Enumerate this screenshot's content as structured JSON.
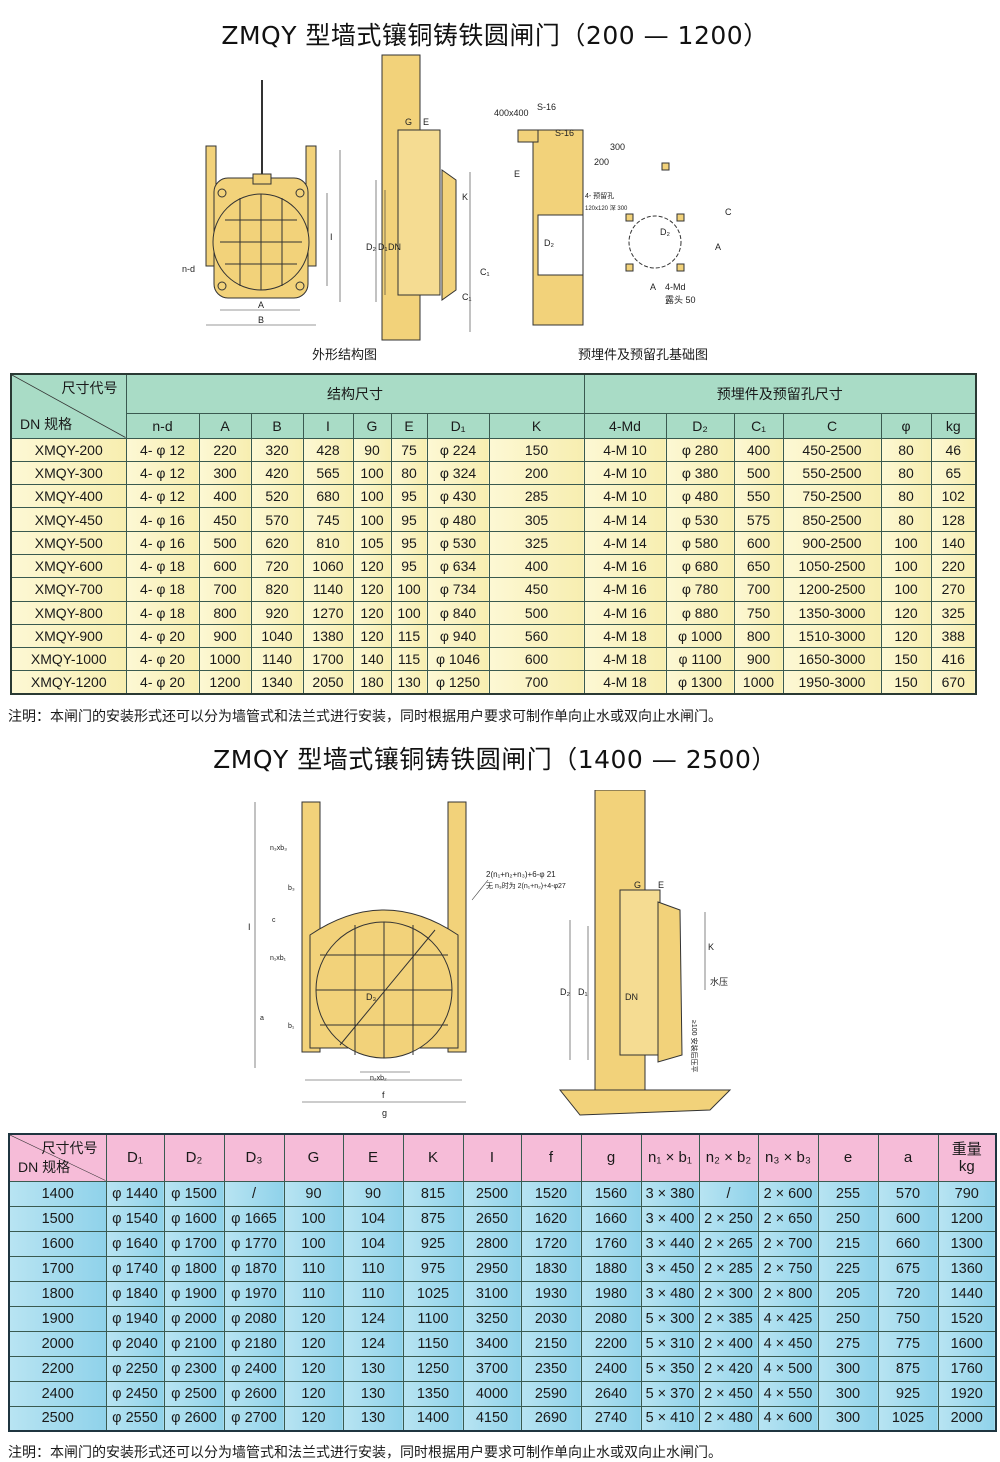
{
  "section1": {
    "title": "ZMQY 型墙式镶铜铸铁圆闸门（200 — 1200）",
    "diagram_captions": [
      "外形结构图",
      "预埋件及预留孔基础图"
    ],
    "diagram_labels": [
      "n-d",
      "A",
      "B",
      "I",
      "G",
      "E",
      "K",
      "D₂",
      "D₁",
      "DN",
      "C₁",
      "400x400",
      "S-16",
      "S-16",
      "E",
      "C₁",
      "D₂",
      "200",
      "300",
      "4- 预留孔",
      "120x120 深 300",
      "C",
      "A",
      "D₂",
      "A",
      "4-Md",
      "露头 50"
    ],
    "table": {
      "corner_top": "尺寸代号",
      "corner_bottom": "DN 规格",
      "group1": "结构尺寸",
      "group2": "预埋件及预留孔尺寸",
      "columns": [
        "n-d",
        "A",
        "B",
        "I",
        "G",
        "E",
        "D₁",
        "K",
        "4-Md",
        "D₂",
        "C₁",
        "C",
        "φ",
        "kg"
      ],
      "rows": [
        [
          "XMQY-200",
          "4- φ 12",
          "220",
          "320",
          "428",
          "90",
          "75",
          "φ 224",
          "150",
          "4-M 10",
          "φ 280",
          "400",
          "450-2500",
          "80",
          "46"
        ],
        [
          "XMQY-300",
          "4- φ 12",
          "300",
          "420",
          "565",
          "100",
          "80",
          "φ 324",
          "200",
          "4-M 10",
          "φ 380",
          "500",
          "550-2500",
          "80",
          "65"
        ],
        [
          "XMQY-400",
          "4- φ 12",
          "400",
          "520",
          "680",
          "100",
          "95",
          "φ 430",
          "285",
          "4-M 10",
          "φ 480",
          "550",
          "750-2500",
          "80",
          "102"
        ],
        [
          "XMQY-450",
          "4- φ 16",
          "450",
          "570",
          "745",
          "100",
          "95",
          "φ 480",
          "305",
          "4-M 14",
          "φ 530",
          "575",
          "850-2500",
          "80",
          "128"
        ],
        [
          "XMQY-500",
          "4- φ 16",
          "500",
          "620",
          "810",
          "105",
          "95",
          "φ 530",
          "325",
          "4-M 14",
          "φ 580",
          "600",
          "900-2500",
          "100",
          "140"
        ],
        [
          "XMQY-600",
          "4- φ 18",
          "600",
          "720",
          "1060",
          "120",
          "95",
          "φ 634",
          "400",
          "4-M 16",
          "φ 680",
          "650",
          "1050-2500",
          "100",
          "220"
        ],
        [
          "XMQY-700",
          "4- φ 18",
          "700",
          "820",
          "1140",
          "120",
          "100",
          "φ 734",
          "450",
          "4-M 16",
          "φ 780",
          "700",
          "1200-2500",
          "100",
          "270"
        ],
        [
          "XMQY-800",
          "4- φ 18",
          "800",
          "920",
          "1270",
          "120",
          "100",
          "φ 840",
          "500",
          "4-M 16",
          "φ 880",
          "750",
          "1350-3000",
          "120",
          "325"
        ],
        [
          "XMQY-900",
          "4- φ 20",
          "900",
          "1040",
          "1380",
          "120",
          "115",
          "φ 940",
          "560",
          "4-M 18",
          "φ 1000",
          "800",
          "1510-3000",
          "120",
          "388"
        ],
        [
          "XMQY-1000",
          "4- φ 20",
          "1000",
          "1140",
          "1700",
          "140",
          "115",
          "φ 1046",
          "600",
          "4-M 18",
          "φ 1100",
          "900",
          "1650-3000",
          "150",
          "416"
        ],
        [
          "XMQY-1200",
          "4- φ 20",
          "1200",
          "1340",
          "2050",
          "180",
          "130",
          "φ 1250",
          "700",
          "4-M 18",
          "φ 1300",
          "1000",
          "1950-3000",
          "150",
          "670"
        ]
      ]
    },
    "note": "注明：本闸门的安装形式还可以分为墙管式和法兰式进行安装，同时根据用户要求可制作单向止水或双向止水闸门。"
  },
  "section2": {
    "title": "ZMQY 型墙式镶铜铸铁圆闸门（1400 — 2500）",
    "diagram_labels": [
      "I",
      "n₃xb₃",
      "b₃",
      "c",
      "n₁xb₁",
      "a",
      "b₁",
      "D₃",
      "n₂xb₂",
      "f",
      "g",
      "2(n₁+n₂+n₃)+6-φ 21",
      "无 n₃时为 2(n₁+n₂)+4-φ27",
      "E",
      "G",
      "K",
      "水压",
      "D₂",
      "D₁",
      "DN",
      "≥100 安装后压平"
    ],
    "table": {
      "corner_top": "尺寸代号",
      "corner_bottom": "DN 规格",
      "columns": [
        "D₁",
        "D₂",
        "D₃",
        "G",
        "E",
        "K",
        "I",
        "f",
        "g",
        "n₁ × b₁",
        "n₂ × b₂",
        "n₃ × b₃",
        "e",
        "a"
      ],
      "weight_header": [
        "重量",
        "kg"
      ],
      "rows": [
        [
          "1400",
          "φ 1440",
          "φ 1500",
          "/",
          "90",
          "90",
          "815",
          "2500",
          "1520",
          "1560",
          "3 × 380",
          "/",
          "2 × 600",
          "255",
          "570",
          "790"
        ],
        [
          "1500",
          "φ 1540",
          "φ 1600",
          "φ 1665",
          "100",
          "104",
          "875",
          "2650",
          "1620",
          "1660",
          "3 × 400",
          "2 × 250",
          "2 × 650",
          "250",
          "600",
          "1200"
        ],
        [
          "1600",
          "φ 1640",
          "φ 1700",
          "φ 1770",
          "100",
          "104",
          "925",
          "2800",
          "1720",
          "1760",
          "3 × 440",
          "2 × 265",
          "2 × 700",
          "215",
          "660",
          "1300"
        ],
        [
          "1700",
          "φ 1740",
          "φ 1800",
          "φ 1870",
          "110",
          "110",
          "975",
          "2950",
          "1830",
          "1880",
          "3 × 450",
          "2 × 285",
          "2 × 750",
          "225",
          "675",
          "1360"
        ],
        [
          "1800",
          "φ 1840",
          "φ 1900",
          "φ 1970",
          "110",
          "110",
          "1025",
          "3100",
          "1930",
          "1980",
          "3 × 480",
          "2 × 300",
          "2 × 800",
          "205",
          "720",
          "1440"
        ],
        [
          "1900",
          "φ 1940",
          "φ 2000",
          "φ 2080",
          "120",
          "124",
          "1100",
          "3250",
          "2030",
          "2080",
          "5 × 300",
          "2 × 385",
          "4 × 425",
          "250",
          "750",
          "1520"
        ],
        [
          "2000",
          "φ 2040",
          "φ 2100",
          "φ 2180",
          "120",
          "124",
          "1150",
          "3400",
          "2150",
          "2200",
          "5 × 310",
          "2 × 400",
          "4 × 450",
          "275",
          "775",
          "1600"
        ],
        [
          "2200",
          "φ 2250",
          "φ 2300",
          "φ 2400",
          "120",
          "130",
          "1250",
          "3700",
          "2350",
          "2400",
          "5 × 350",
          "2 × 420",
          "4 × 500",
          "300",
          "875",
          "1760"
        ],
        [
          "2400",
          "φ 2450",
          "φ 2500",
          "φ 2600",
          "120",
          "130",
          "1350",
          "4000",
          "2590",
          "2640",
          "5 × 370",
          "2 × 450",
          "4 × 550",
          "300",
          "925",
          "1920"
        ],
        [
          "2500",
          "φ 2550",
          "φ 2600",
          "φ 2700",
          "120",
          "130",
          "1400",
          "4150",
          "2690",
          "2740",
          "5 × 410",
          "2 × 480",
          "4 × 600",
          "300",
          "1025",
          "2000"
        ]
      ]
    },
    "note": "注明：本闸门的安装形式还可以分为墙管式和法兰式进行安装，同时根据用户要求可制作单向止水或双向止水闸门。"
  },
  "colors": {
    "drawing_fill": "#f2d27a",
    "table1_header": "#a9dcc6",
    "table1_row": "#fdf8d4",
    "table2_header": "#f6bcd8",
    "table2_row": "#9fd8ee"
  }
}
